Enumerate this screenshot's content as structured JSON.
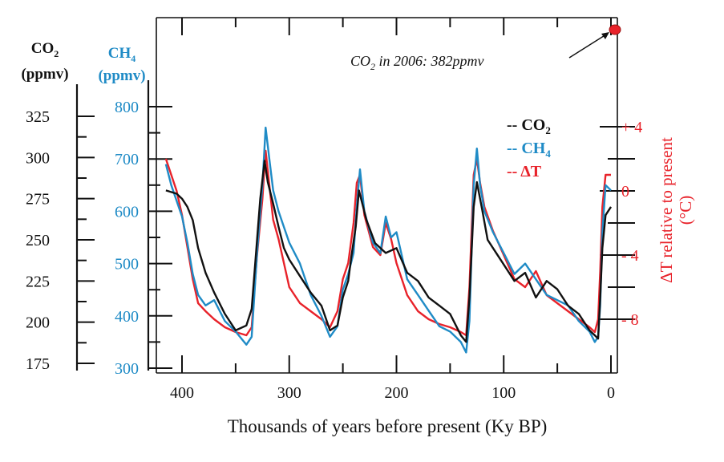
{
  "chart_data": {
    "type": "line",
    "title": "",
    "xlabel": "Thousands of years before present (Ky BP)",
    "xlim": [
      420,
      0
    ],
    "x_ticks": [
      "400",
      "300",
      "200",
      "100",
      "0"
    ],
    "axes": {
      "co2": {
        "label_line1": "CO",
        "label_sub": "2",
        "label_line2": "(ppmv)",
        "ticks": [
          "325",
          "300",
          "275",
          "250",
          "225",
          "200",
          "175"
        ],
        "ylim": [
          175,
          325
        ]
      },
      "ch4": {
        "label_line1": "CH",
        "label_sub": "4",
        "label_line2": "(ppmv)",
        "ticks": [
          "800",
          "700",
          "600",
          "500",
          "400",
          "300"
        ],
        "ylim": [
          300,
          800
        ]
      },
      "dt": {
        "label": "ΔT relative to present",
        "label_unit": "(°C)",
        "ticks": [
          "+ 4",
          "0",
          "- 4",
          "- 8"
        ],
        "ylim": [
          -10,
          4
        ]
      }
    },
    "legend": {
      "position": "top-right",
      "entries": [
        {
          "prefix": "-- ",
          "text": "CO",
          "sub": "2",
          "color": "#111111"
        },
        {
          "prefix": "-- ",
          "text": "CH",
          "sub": "4",
          "color": "#1f8bc6"
        },
        {
          "prefix": "-- ",
          "text": "ΔT",
          "sub": "",
          "color": "#e8222a"
        }
      ]
    },
    "annotation": {
      "prefix": "CO",
      "sub": "2",
      "rest": " in 2006: 382ppmv",
      "marker_color": "#e8222a"
    },
    "colors": {
      "co2": "#111111",
      "ch4": "#1f8bc6",
      "dt": "#e8222a"
    },
    "series": [
      {
        "name": "CO2",
        "unit": "ppmv",
        "x": [
          415,
          405,
          400,
          395,
          390,
          385,
          378,
          370,
          360,
          350,
          340,
          335,
          330,
          327,
          323,
          320,
          315,
          310,
          305,
          300,
          290,
          280,
          270,
          262,
          255,
          250,
          245,
          242,
          238,
          235,
          228,
          220,
          210,
          200,
          190,
          180,
          170,
          160,
          150,
          140,
          135,
          132,
          128,
          125,
          120,
          115,
          110,
          100,
          90,
          80,
          70,
          60,
          50,
          40,
          30,
          20,
          15,
          12,
          10,
          8,
          5,
          0
        ],
        "values": [
          280,
          278,
          275,
          270,
          262,
          245,
          230,
          218,
          205,
          195,
          198,
          208,
          250,
          275,
          298,
          285,
          272,
          258,
          245,
          238,
          228,
          218,
          210,
          195,
          198,
          215,
          225,
          240,
          258,
          280,
          262,
          248,
          242,
          245,
          230,
          225,
          215,
          210,
          205,
          192,
          188,
          215,
          270,
          285,
          268,
          250,
          245,
          235,
          225,
          230,
          215,
          225,
          220,
          210,
          205,
          195,
          192,
          190,
          215,
          245,
          265,
          270
        ]
      },
      {
        "name": "CH4",
        "unit": "ppmv",
        "x": [
          415,
          410,
          405,
          400,
          395,
          390,
          385,
          378,
          370,
          360,
          350,
          340,
          335,
          330,
          325,
          322,
          318,
          315,
          310,
          305,
          300,
          290,
          280,
          270,
          262,
          255,
          250,
          245,
          240,
          237,
          234,
          230,
          222,
          215,
          210,
          205,
          200,
          190,
          180,
          170,
          160,
          150,
          140,
          135,
          132,
          128,
          125,
          122,
          118,
          110,
          100,
          90,
          80,
          70,
          60,
          50,
          40,
          30,
          20,
          15,
          12,
          10,
          8,
          5,
          0
        ],
        "values": [
          690,
          650,
          620,
          590,
          540,
          480,
          440,
          420,
          430,
          390,
          370,
          345,
          360,
          520,
          650,
          760,
          690,
          640,
          600,
          570,
          540,
          500,
          440,
          400,
          360,
          380,
          450,
          480,
          520,
          610,
          680,
          600,
          540,
          520,
          590,
          550,
          560,
          470,
          440,
          410,
          380,
          370,
          350,
          330,
          390,
          650,
          720,
          650,
          600,
          560,
          520,
          480,
          500,
          470,
          440,
          430,
          420,
          390,
          370,
          350,
          360,
          420,
          560,
          650,
          640
        ]
      },
      {
        "name": "ΔT",
        "unit": "°C",
        "x": [
          415,
          410,
          405,
          400,
          395,
          390,
          385,
          378,
          370,
          360,
          350,
          340,
          335,
          330,
          325,
          322,
          318,
          315,
          310,
          305,
          300,
          290,
          280,
          270,
          262,
          255,
          250,
          245,
          240,
          237,
          234,
          230,
          222,
          215,
          210,
          205,
          200,
          190,
          180,
          170,
          160,
          150,
          140,
          135,
          132,
          128,
          125,
          122,
          118,
          110,
          100,
          90,
          80,
          70,
          60,
          50,
          40,
          30,
          20,
          15,
          12,
          10,
          8,
          5,
          0
        ],
        "values": [
          2.0,
          1.0,
          0,
          -1.5,
          -3.5,
          -5.5,
          -7.0,
          -7.5,
          -8.0,
          -8.5,
          -8.8,
          -9.0,
          -8.5,
          -4.0,
          -0.5,
          2.5,
          0,
          -1.8,
          -3.0,
          -4.5,
          -6.0,
          -7.0,
          -7.5,
          -8.0,
          -8.5,
          -7.5,
          -5.5,
          -4.5,
          -2.0,
          0.5,
          1.0,
          -1.5,
          -3.5,
          -4.0,
          -2.0,
          -3.0,
          -4.5,
          -6.5,
          -7.5,
          -8.0,
          -8.3,
          -8.5,
          -8.8,
          -9.0,
          -6.0,
          1.0,
          2.0,
          0.5,
          -1.0,
          -2.5,
          -4.0,
          -5.5,
          -6.0,
          -5.0,
          -6.5,
          -7.0,
          -7.5,
          -8.0,
          -8.5,
          -8.8,
          -8.0,
          -5.0,
          -1.0,
          1.0,
          1.0
        ]
      }
    ]
  }
}
